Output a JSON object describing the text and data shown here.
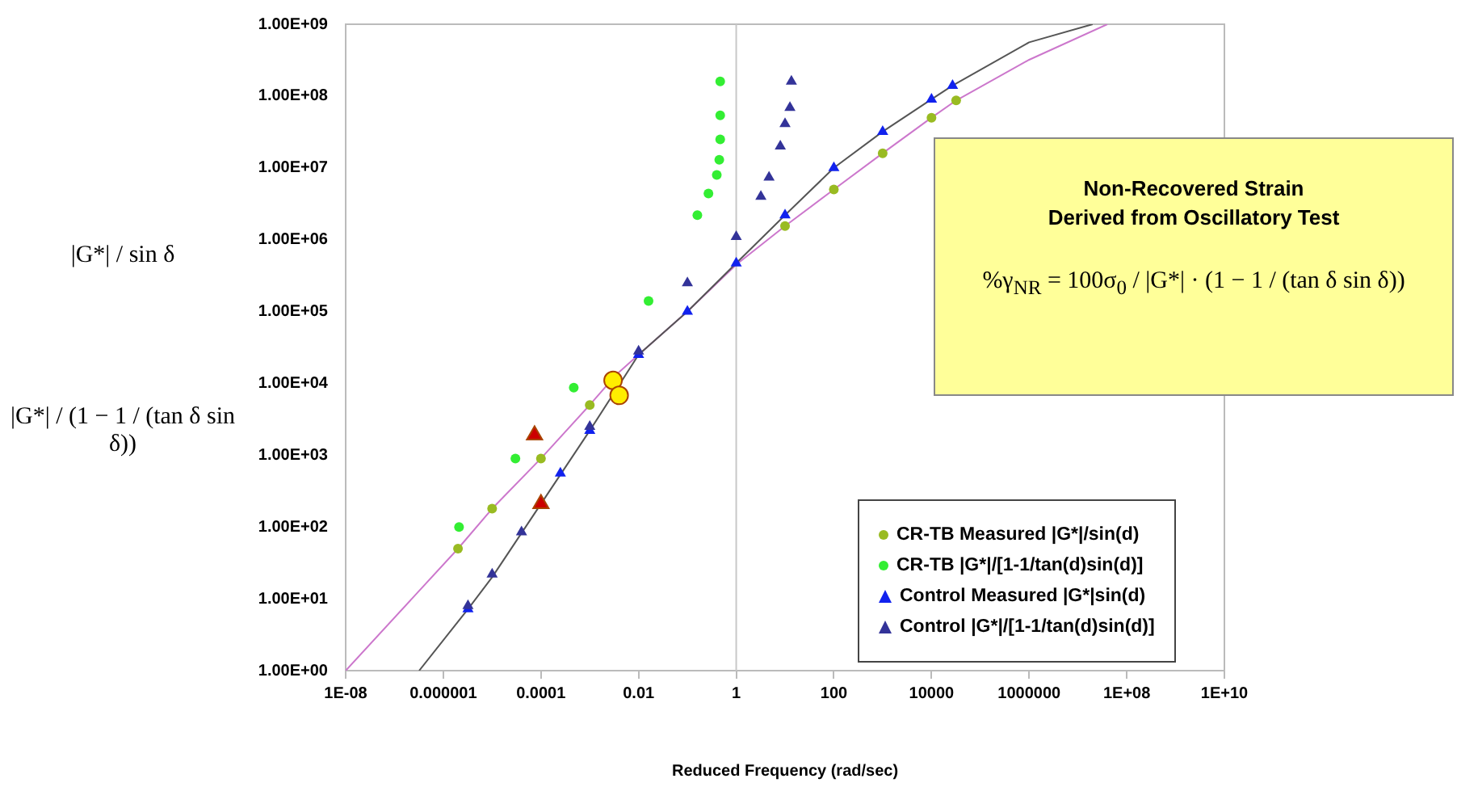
{
  "chart_data": {
    "type": "scatter",
    "xlabel": "Reduced Frequency (rad/sec)",
    "ylabel": "|G*| / sin δ",
    "log": "xy",
    "legend": "bottom right",
    "xlim": [
      1e-08,
      10000000000.0
    ],
    "ylim": [
      1,
      1000000000.0
    ],
    "xticks": [
      {
        "value": 1e-08,
        "label": "1E-08"
      },
      {
        "value": 1e-06,
        "label": "0.000001"
      },
      {
        "value": 0.0001,
        "label": "0.0001"
      },
      {
        "value": 0.01,
        "label": "0.01"
      },
      {
        "value": 1,
        "label": "1"
      },
      {
        "value": 100,
        "label": "100"
      },
      {
        "value": 10000,
        "label": "10000"
      },
      {
        "value": 1000000,
        "label": "1000000"
      },
      {
        "value": 100000000.0,
        "label": "1E+08"
      },
      {
        "value": 10000000000.0,
        "label": "1E+10"
      }
    ],
    "yticks": [
      {
        "value": 1,
        "label": "1.00E+00"
      },
      {
        "value": 10,
        "label": "1.00E+01"
      },
      {
        "value": 100,
        "label": "1.00E+02"
      },
      {
        "value": 1000,
        "label": "1.00E+03"
      },
      {
        "value": 10000,
        "label": "1.00E+04"
      },
      {
        "value": 100000,
        "label": "1.00E+05"
      },
      {
        "value": 1000000,
        "label": "1.00E+06"
      },
      {
        "value": 10000000.0,
        "label": "1.00E+07"
      },
      {
        "value": 100000000.0,
        "label": "1.00E+08"
      },
      {
        "value": 1000000000.0,
        "label": "1.00E+09"
      }
    ],
    "ref_lines": [
      {
        "axis": "x",
        "value": 1,
        "color": "#c8c8c8"
      }
    ],
    "annotations": [
      "|G*| / (1 − 1 / (tan δ sin δ))",
      "Non-Recovered Strain",
      "Derived from Oscillatory Test",
      "%γ$_{NR}$ = 100σ$_{0}$ / |G*| · (1 − 1 / (tan δ sin δ))"
    ],
    "series": [
      {
        "type": "line",
        "marker": "none",
        "color": "#cc77cc",
        "x": [
          1e-08,
          2e-06,
          1e-05,
          0.0001,
          0.001,
          0.0034,
          0.01,
          0.1,
          1,
          10,
          100,
          1000,
          10000.0,
          32000.0,
          1000000.0,
          40000000.0
        ],
        "values": [
          1,
          50,
          180,
          900,
          5000,
          13000.0,
          25000.0,
          100000.0,
          450000.0,
          1550000.0,
          5000000.0,
          16000000.0,
          50000000.0,
          87000000.0,
          320000000.0,
          1000000000.0
        ]
      },
      {
        "type": "line",
        "marker": "none",
        "color": "#555555",
        "x": [
          3.2e-07,
          3.2e-06,
          1e-05,
          0.0001,
          0.001,
          0.01,
          0.1,
          1,
          10,
          100,
          1000,
          10000.0,
          27000.0,
          1000000.0,
          20000000.0
        ],
        "values": [
          1,
          7.2,
          20,
          210,
          2200,
          25000.0,
          100000.0,
          470000.0,
          2200000.0,
          10000000.0,
          32000000.0,
          90000000.0,
          140000000.0,
          560000000.0,
          1000000000.0
        ]
      },
      {
        "name": "CR-TB Measured |G*|/sin(d)",
        "marker": "circle",
        "color": "#99bb22",
        "x": [
          2e-06,
          1e-05,
          0.0001,
          0.001,
          10,
          100,
          1000,
          10000.0,
          32000.0
        ],
        "values": [
          50,
          180,
          900,
          5000,
          1550000.0,
          5000000.0,
          16000000.0,
          50000000.0,
          87000000.0
        ]
      },
      {
        "name": "CR-TB |G*|/[1-1/tan(d)sin(d)]",
        "marker": "circle",
        "color": "#33ee33",
        "x": [
          2.1e-06,
          3e-05,
          0.00047,
          0.016,
          0.16,
          0.27,
          0.4,
          0.45,
          0.47,
          0.47,
          0.47
        ],
        "values": [
          100,
          900,
          8700,
          140000.0,
          2200000.0,
          4400000.0,
          8000000.0,
          13000000.0,
          25000000.0,
          54000000.0,
          160000000.0
        ]
      },
      {
        "name": "Control Measured |G*|sin(d)",
        "marker": "triangle",
        "color": "#1122ee",
        "x": [
          3.2e-06,
          0.00025,
          0.001,
          0.01,
          0.1,
          1,
          10,
          100,
          1000,
          10000.0,
          27000.0
        ],
        "values": [
          7.2,
          560,
          2200,
          25000.0,
          100000.0,
          470000.0,
          2200000.0,
          10000000.0,
          32000000.0,
          90000000.0,
          140000000.0
        ]
      },
      {
        "name": "Control |G*|/[1-1/tan(d)sin(d)]",
        "marker": "triangle",
        "color": "#333399",
        "x": [
          3.2e-06,
          1e-05,
          4e-05,
          0.001,
          0.01,
          0.1,
          1,
          3.2,
          4.7,
          8,
          10,
          12.6,
          13.5
        ],
        "values": [
          8,
          22,
          85,
          2500,
          28000.0,
          250000.0,
          1100000.0,
          4000000.0,
          7400000.0,
          20000000.0,
          41000000.0,
          69000000.0,
          160000000.0
        ]
      },
      {
        "marker": "triangle",
        "color": "#cc0000",
        "x": [
          7.4e-05,
          0.0001
        ],
        "values": [
          1900,
          210
        ]
      },
      {
        "marker": "circle",
        "color": "#ffee00",
        "x": [
          0.003,
          0.004
        ],
        "values": [
          11000.0,
          6800.0
        ]
      }
    ]
  }
}
